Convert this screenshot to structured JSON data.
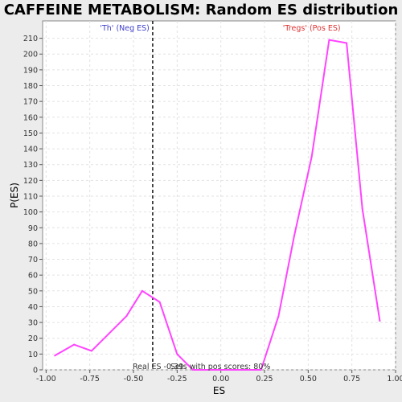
{
  "chart_data": {
    "type": "line",
    "title": "CAFFEINE METABOLISM: Random ES distribution",
    "xlabel": "ES",
    "ylabel": "P(ES)",
    "xlim": [
      -1.02,
      1.0
    ],
    "ylim": [
      0,
      221
    ],
    "xticks": [
      "-1.00",
      "-0.75",
      "-0.50",
      "-0.25",
      "0.00",
      "0.25",
      "0.50",
      "0.75",
      "1.00"
    ],
    "xtick_values": [
      -1.0,
      -0.75,
      -0.5,
      -0.25,
      0.0,
      0.25,
      0.5,
      0.75,
      1.0
    ],
    "yticks": [
      0,
      10,
      20,
      30,
      40,
      50,
      60,
      70,
      80,
      90,
      100,
      110,
      120,
      130,
      140,
      150,
      160,
      170,
      180,
      190,
      200,
      210
    ],
    "grid": true,
    "series": [
      {
        "color": "#ff44ff",
        "x": [
          -0.95,
          -0.84,
          -0.74,
          -0.64,
          -0.54,
          -0.45,
          -0.35,
          -0.25,
          -0.16,
          -0.06,
          0.04,
          0.14,
          0.23,
          0.33,
          0.42,
          0.52,
          0.62,
          0.72,
          0.81,
          0.91
        ],
        "y": [
          9,
          16,
          12,
          23,
          34,
          50,
          43,
          10,
          0,
          0,
          0,
          0,
          0,
          34,
          85,
          135,
          209,
          207,
          102,
          31
        ]
      }
    ],
    "real_es": -0.39,
    "real_es_label": "Real ES -0.39",
    "pos_score_label": "Sets with pos scores: 80%",
    "neg_label": "'Th' (Neg ES)",
    "pos_label": "'Tregs' (Pos ES)",
    "neg_color": "#4040cc",
    "pos_color": "#dd3333"
  }
}
